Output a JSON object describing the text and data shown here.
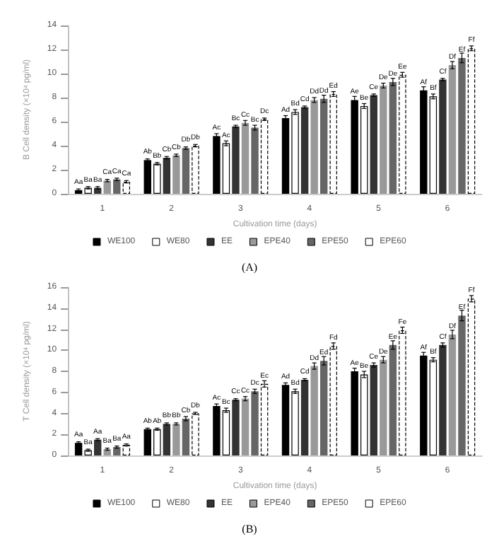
{
  "chart_data": [
    {
      "type": "bar",
      "ylabel": "B Cell density (×10$^{4}$ pg/ml)",
      "xlabel": "Cultivation time (days)",
      "categories": [
        "1",
        "2",
        "3",
        "4",
        "5",
        "6"
      ],
      "ylim": [
        0,
        14
      ],
      "yticks": [
        0,
        2,
        4,
        6,
        8,
        10,
        12,
        14
      ],
      "grid": false,
      "legend": "bottom",
      "annotations": [
        "(A)"
      ],
      "series": [
        {
          "name": "WE100",
          "color": "#000000",
          "values": [
            0.3,
            2.8,
            4.8,
            6.3,
            7.8,
            8.6
          ],
          "errors": [
            0.1,
            0.1,
            0.2,
            0.2,
            0.3,
            0.3
          ],
          "value_labels": [
            "Aa",
            "Ab",
            "Ac",
            "Ad",
            "Ae",
            "Af"
          ]
        },
        {
          "name": "WE80",
          "color": "#ffffff",
          "values": [
            0.5,
            2.5,
            4.2,
            6.8,
            7.3,
            8.1
          ],
          "errors": [
            0.1,
            0.1,
            0.2,
            0.2,
            0.2,
            0.2
          ],
          "value_labels": [
            "Ba",
            "Bb",
            "Ac",
            "Bd",
            "Be",
            "Bf"
          ]
        },
        {
          "name": "EE",
          "color": "#333333",
          "values": [
            0.5,
            3.0,
            5.6,
            7.2,
            8.2,
            9.5
          ],
          "errors": [
            0.1,
            0.1,
            0.1,
            0.1,
            0.1,
            0.1
          ],
          "value_labels": [
            "Ba",
            "Cb",
            "Bc",
            "Cd",
            "Ce",
            "Cf"
          ]
        },
        {
          "name": "EPE40",
          "color": "#999999",
          "values": [
            1.1,
            3.2,
            5.9,
            7.8,
            9.0,
            10.7
          ],
          "errors": [
            0.1,
            0.1,
            0.2,
            0.2,
            0.2,
            0.3
          ],
          "value_labels": [
            "Ca",
            "Cb",
            "Cc",
            "Dd",
            "De",
            "Df"
          ]
        },
        {
          "name": "EPE50",
          "color": "#666666",
          "values": [
            1.2,
            3.8,
            5.5,
            7.9,
            9.3,
            11.3
          ],
          "errors": [
            0.1,
            0.1,
            0.2,
            0.3,
            0.3,
            0.4
          ],
          "value_labels": [
            "Ca",
            "Db",
            "Bc",
            "Dd",
            "De",
            "Ef"
          ]
        },
        {
          "name": "EPE60",
          "color": "#ffffff",
          "line_style": "dashed",
          "values": [
            1.0,
            4.0,
            6.2,
            8.3,
            9.9,
            12.1
          ],
          "errors": [
            0.1,
            0.1,
            0.1,
            0.2,
            0.2,
            0.2
          ],
          "value_labels": [
            "Ca",
            "Db",
            "Dc",
            "Ed",
            "Ee",
            "Ff"
          ]
        }
      ]
    },
    {
      "type": "bar",
      "ylabel": "T Cell density (×10$^{4}$ pg/ml)",
      "xlabel": "Cultivation time (days)",
      "categories": [
        "1",
        "2",
        "3",
        "4",
        "5",
        "6"
      ],
      "ylim": [
        0,
        16
      ],
      "yticks": [
        0,
        2,
        4,
        6,
        8,
        10,
        12,
        14,
        16
      ],
      "grid": false,
      "legend": "bottom",
      "annotations": [
        "(B)"
      ],
      "series": [
        {
          "name": "WE100",
          "color": "#000000",
          "values": [
            1.2,
            2.5,
            4.7,
            6.7,
            8.0,
            9.5
          ],
          "errors": [
            0.1,
            0.1,
            0.2,
            0.2,
            0.3,
            0.3
          ],
          "value_labels": [
            "Aa",
            "Ab",
            "Ac",
            "Ad",
            "Ae",
            "Af"
          ]
        },
        {
          "name": "WE80",
          "color": "#ffffff",
          "values": [
            0.5,
            2.5,
            4.3,
            6.1,
            7.7,
            9.1
          ],
          "errors": [
            0.1,
            0.1,
            0.2,
            0.2,
            0.3,
            0.2
          ],
          "value_labels": [
            "Ba",
            "Ab",
            "Bc",
            "Bd",
            "Be",
            "Bf"
          ]
        },
        {
          "name": "EE",
          "color": "#333333",
          "values": [
            1.5,
            3.0,
            5.3,
            7.2,
            8.6,
            10.5
          ],
          "errors": [
            0.1,
            0.1,
            0.1,
            0.1,
            0.2,
            0.2
          ],
          "value_labels": [
            "Aa",
            "Bb",
            "Cc",
            "Cd",
            "Ce",
            "Cf"
          ]
        },
        {
          "name": "EPE40",
          "color": "#999999",
          "values": [
            0.6,
            3.0,
            5.4,
            8.5,
            9.1,
            11.5
          ],
          "errors": [
            0.1,
            0.1,
            0.2,
            0.3,
            0.3,
            0.4
          ],
          "value_labels": [
            "Ba",
            "Bb",
            "Cc",
            "Dd",
            "De",
            "Df"
          ]
        },
        {
          "name": "EPE50",
          "color": "#666666",
          "values": [
            0.8,
            3.5,
            6.1,
            9.0,
            10.5,
            13.3
          ],
          "errors": [
            0.1,
            0.2,
            0.2,
            0.4,
            0.4,
            0.5
          ],
          "value_labels": [
            "Ba",
            "Cb",
            "Dc",
            "Ed",
            "Ee",
            "Ef"
          ]
        },
        {
          "name": "EPE60",
          "color": "#ffffff",
          "line_style": "dashed",
          "values": [
            1.0,
            4.0,
            6.8,
            10.4,
            11.9,
            14.9
          ],
          "errors": [
            0.1,
            0.1,
            0.3,
            0.3,
            0.3,
            0.3
          ],
          "value_labels": [
            "Aa",
            "Db",
            "Ec",
            "Fd",
            "Fe",
            "Ff"
          ]
        }
      ]
    }
  ]
}
